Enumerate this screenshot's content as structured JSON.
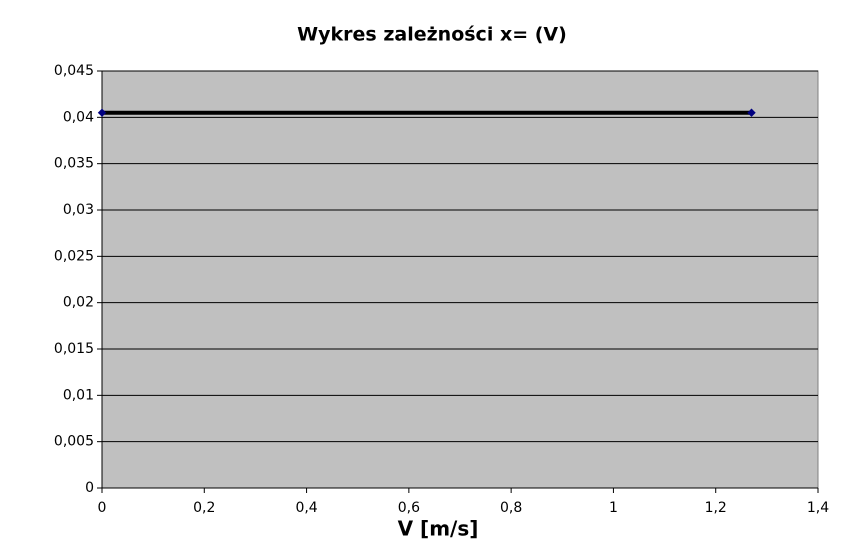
{
  "chart_data": {
    "type": "line",
    "title": "Wykres zależności x= (V)",
    "x_label": "V [m/s]",
    "x": [
      0,
      1.27
    ],
    "series": [
      {
        "color": "#000000",
        "marker_color": "#000080",
        "values": [
          0.0405,
          0.0405
        ]
      }
    ],
    "xlim": [
      0,
      1.4
    ],
    "xticks": [
      0,
      {
        "value": 0.2,
        "label": "0,2"
      },
      {
        "value": 0.4,
        "label": "0,4"
      },
      {
        "value": 0.6,
        "label": "0,6"
      },
      {
        "value": 0.8,
        "label": "0,8"
      },
      1,
      {
        "value": 1.2,
        "label": "1,2"
      },
      {
        "value": 1.4,
        "label": "1,4"
      }
    ],
    "ylim": [
      0,
      0.045
    ],
    "yticks": [
      0,
      {
        "value": 0.005,
        "label": "0,005"
      },
      {
        "value": 0.01,
        "label": "0,01"
      },
      {
        "value": 0.015,
        "label": "0,015"
      },
      {
        "value": 0.02,
        "label": "0,02"
      },
      {
        "value": 0.025,
        "label": "0,025"
      },
      {
        "value": 0.03,
        "label": "0,03"
      },
      {
        "value": 0.035,
        "label": "0,035"
      },
      {
        "value": 0.04,
        "label": "0,04"
      },
      {
        "value": 0.045,
        "label": "0,045"
      }
    ],
    "grid": true,
    "plot_background": "#c0c0c0"
  }
}
